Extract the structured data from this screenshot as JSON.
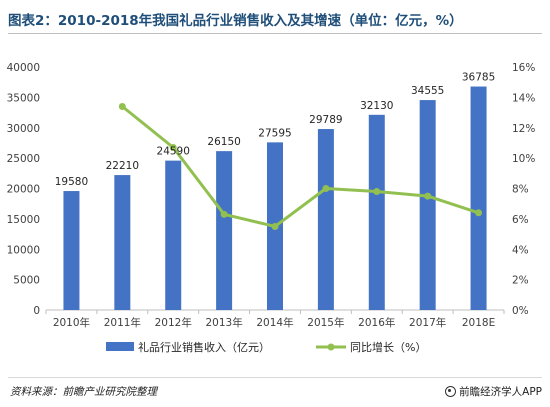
{
  "page_title": "图表2：2010-2018年我国礼品行业销售收入及其增速（单位：亿元，%）",
  "chart_data": {
    "type": "bar",
    "categories": [
      "2010年",
      "2011年",
      "2012年",
      "2013年",
      "2014年",
      "2015年",
      "2016年",
      "2017年",
      "2018E"
    ],
    "series": [
      {
        "name": "礼品行业销售收入（亿元）",
        "type": "bar",
        "axis": "left",
        "color": "#4472c4",
        "values": [
          19580,
          22210,
          24590,
          26150,
          27595,
          29789,
          32130,
          34555,
          36785
        ],
        "labels": [
          "19580",
          "22210",
          "24590",
          "26150",
          "27595",
          "29789",
          "32130",
          "34555",
          "36785"
        ]
      },
      {
        "name": "同比增长（%）",
        "type": "line",
        "axis": "right",
        "color": "#92c050",
        "values": [
          null,
          13.4,
          10.7,
          6.3,
          5.5,
          8.0,
          7.8,
          7.5,
          6.4
        ]
      }
    ],
    "y_left": {
      "ylim": [
        0,
        40000
      ],
      "ticks": [
        "0",
        "5000",
        "10000",
        "15000",
        "20000",
        "25000",
        "30000",
        "35000",
        "40000"
      ]
    },
    "y_right": {
      "ylim": [
        0,
        16
      ],
      "ticks": [
        "0%",
        "2%",
        "4%",
        "6%",
        "8%",
        "10%",
        "12%",
        "14%",
        "16%"
      ]
    },
    "grid": false,
    "legend_position": "bottom"
  },
  "footer": {
    "source": "资料来源：前瞻产业研究院整理",
    "brand": "前瞻经济学人APP"
  },
  "colors": {
    "title": "#1f4e79",
    "bar": "#4472c4",
    "line": "#92c050"
  }
}
